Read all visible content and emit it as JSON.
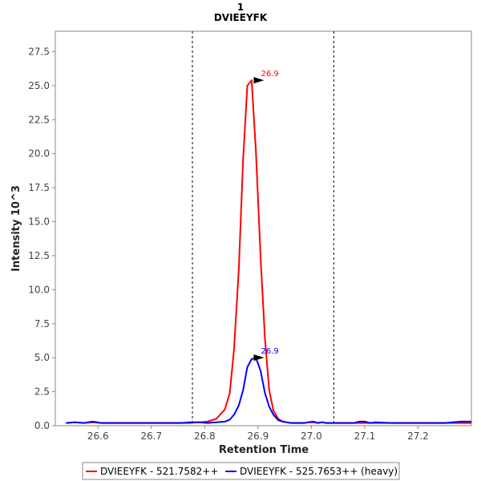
{
  "chart_data": {
    "type": "line",
    "title": "1",
    "subtitle": "DVIEEYFK",
    "xlabel": "Retention Time",
    "ylabel": "Intensity 10^3",
    "xlim": [
      26.52,
      27.3
    ],
    "ylim": [
      0,
      29.0
    ],
    "xticks": [
      26.6,
      26.7,
      26.8,
      26.9,
      27.0,
      27.1,
      27.2
    ],
    "xtick_labels": [
      "26.6",
      "26.7",
      "26.8",
      "26.9",
      "27.0",
      "27.1",
      "27.2"
    ],
    "yticks": [
      0,
      2.5,
      5,
      7.5,
      10,
      12.5,
      15,
      17.5,
      20,
      22.5,
      25,
      27.5
    ],
    "ytick_labels": [
      "0.0",
      "2.5",
      "5.0",
      "7.5",
      "10.0",
      "12.5",
      "15.0",
      "17.5",
      "20.0",
      "22.5",
      "25.0",
      "27.5"
    ],
    "integration_bounds": [
      26.777,
      27.042
    ],
    "grid": false,
    "legend_position": "bottom",
    "series": [
      {
        "name": "DVIEEYFK - 521.7582++",
        "color": "#ff0000",
        "x": [
          26.54,
          26.557,
          26.573,
          26.59,
          26.606,
          26.623,
          26.64,
          26.656,
          26.673,
          26.689,
          26.706,
          26.722,
          26.739,
          26.756,
          26.772,
          26.789,
          26.805,
          26.822,
          26.838,
          26.847,
          26.855,
          26.864,
          26.872,
          26.88,
          26.888,
          26.896,
          26.905,
          26.913,
          26.921,
          26.929,
          26.938,
          26.946,
          26.954,
          26.962,
          26.971,
          26.979,
          26.987,
          26.995,
          27.004,
          27.012,
          27.02,
          27.028,
          27.037,
          27.05,
          27.06,
          27.07,
          27.08,
          27.09,
          27.1,
          27.11,
          27.12,
          27.15,
          27.2,
          27.25,
          27.28,
          27.3
        ],
        "values": [
          0.2,
          0.25,
          0.2,
          0.25,
          0.2,
          0.2,
          0.2,
          0.2,
          0.2,
          0.2,
          0.2,
          0.2,
          0.2,
          0.2,
          0.2,
          0.25,
          0.3,
          0.5,
          1.2,
          2.4,
          5.6,
          11.5,
          19.5,
          25.0,
          25.4,
          20.2,
          12.2,
          6.4,
          2.6,
          1.1,
          0.5,
          0.3,
          0.25,
          0.2,
          0.2,
          0.2,
          0.2,
          0.25,
          0.25,
          0.2,
          0.25,
          0.2,
          0.2,
          0.2,
          0.2,
          0.2,
          0.2,
          0.2,
          0.2,
          0.2,
          0.2,
          0.2,
          0.2,
          0.2,
          0.2,
          0.2
        ]
      },
      {
        "name": "DVIEEYFK - 525.7653++ (heavy)",
        "color": "#0000ff",
        "x": [
          26.54,
          26.557,
          26.573,
          26.59,
          26.606,
          26.623,
          26.64,
          26.656,
          26.673,
          26.689,
          26.706,
          26.722,
          26.739,
          26.756,
          26.772,
          26.789,
          26.805,
          26.822,
          26.838,
          26.847,
          26.855,
          26.864,
          26.872,
          26.88,
          26.888,
          26.896,
          26.905,
          26.913,
          26.921,
          26.929,
          26.938,
          26.946,
          26.954,
          26.962,
          26.971,
          26.979,
          26.987,
          26.995,
          27.004,
          27.012,
          27.02,
          27.028,
          27.037,
          27.05,
          27.06,
          27.07,
          27.08,
          27.09,
          27.1,
          27.11,
          27.12,
          27.15,
          27.2,
          27.25,
          27.28,
          27.3
        ],
        "values": [
          0.2,
          0.25,
          0.2,
          0.3,
          0.2,
          0.2,
          0.2,
          0.2,
          0.2,
          0.2,
          0.2,
          0.2,
          0.2,
          0.2,
          0.25,
          0.25,
          0.2,
          0.25,
          0.3,
          0.45,
          0.8,
          1.5,
          2.6,
          4.3,
          4.9,
          5.0,
          4.0,
          2.4,
          1.4,
          0.8,
          0.4,
          0.3,
          0.25,
          0.2,
          0.2,
          0.2,
          0.2,
          0.25,
          0.3,
          0.2,
          0.25,
          0.2,
          0.2,
          0.2,
          0.2,
          0.2,
          0.2,
          0.3,
          0.3,
          0.2,
          0.25,
          0.2,
          0.2,
          0.2,
          0.3,
          0.3
        ]
      }
    ],
    "annotations": [
      {
        "text": "26.9",
        "x": 26.913,
        "y": 25.4,
        "color": "#ff0000"
      },
      {
        "text": "26.9",
        "x": 26.913,
        "y": 5.0,
        "color": "#0000ff"
      }
    ]
  }
}
